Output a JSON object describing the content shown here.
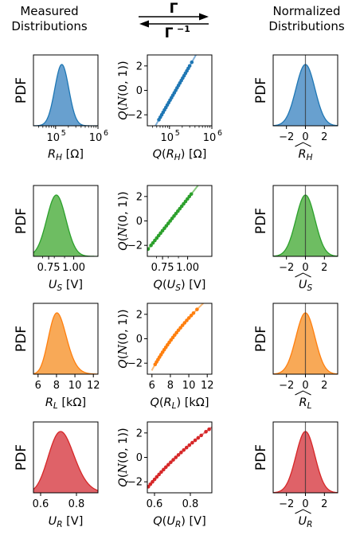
{
  "headers": {
    "left": [
      "Measured",
      "Distributions"
    ],
    "right": [
      "Normalized",
      "Distributions"
    ],
    "forward": "Γ",
    "inverse": "Γ",
    "inverse_sup": "−1"
  },
  "colors": {
    "RH": "#4d8fc7",
    "US": "#55b247",
    "RL": "#f79a3a",
    "UR": "#d9474d",
    "RH_dot": "#1f77b4",
    "US_dot": "#2ca02c",
    "RL_dot": "#ff7f0e",
    "UR_dot": "#d62728"
  },
  "chart_data": [
    {
      "type": "area",
      "row": 0,
      "col": 0,
      "ylabel": "PDF",
      "xlabel": "R_H [Ω]",
      "xlabel_main": "R",
      "xlabel_sub": "H",
      "xlabel_unit": "[Ω]",
      "xscale": "log",
      "xlim": [
        30000.0,
        1000000.0
      ],
      "xticks": [
        {
          "v": 100000.0,
          "base": "10",
          "exp": "5"
        },
        {
          "v": 1000000.0,
          "base": "10",
          "exp": "6"
        }
      ],
      "dist": {
        "kind": "lognormal",
        "mu": 11.85,
        "sigma": 0.38
      },
      "color": "RH"
    },
    {
      "type": "scatter",
      "row": 0,
      "col": 1,
      "ylabel": "Q(𝒩(0, 1))",
      "xlabel": "Q(R_H) [Ω]",
      "xlabel_pre": "Q(",
      "xlabel_main": "R",
      "xlabel_sub": "H",
      "xlabel_post": ") [Ω]",
      "xscale": "log",
      "xlim": [
        30000.0,
        1000000.0
      ],
      "ylim": [
        -2.9,
        2.9
      ],
      "yticks": [
        -2,
        0,
        2
      ],
      "xticks": [
        {
          "v": 100000.0,
          "base": "10",
          "exp": "5"
        },
        {
          "v": 1000000.0,
          "base": "10",
          "exp": "6"
        }
      ],
      "dist": {
        "kind": "lognormal",
        "mu": 11.85,
        "sigma": 0.38
      },
      "curve_ext": [
        -3.2,
        2.9
      ],
      "points_z": [
        -2.4,
        -2.2,
        -2.0,
        -1.8,
        -1.6,
        -1.4,
        -1.2,
        -1.0,
        -0.8,
        -0.6,
        -0.4,
        -0.2,
        0.0,
        0.2,
        0.4,
        0.6,
        0.8,
        1.0,
        1.2,
        1.4,
        1.6,
        1.8,
        2.0,
        2.3
      ],
      "color": "RH"
    },
    {
      "type": "area",
      "row": 0,
      "col": 2,
      "ylabel": "PDF",
      "xlabel": "R̂_H",
      "xlabel_main": "R",
      "xlabel_sub": "H",
      "hat": true,
      "xlim": [
        -3.4,
        3.4
      ],
      "xticks": [
        {
          "v": -2,
          "t": "−2"
        },
        {
          "v": 0,
          "t": "0"
        },
        {
          "v": 2,
          "t": "2"
        }
      ],
      "dist": {
        "kind": "normal",
        "mu": 0,
        "sigma": 1
      },
      "color": "RH"
    },
    {
      "type": "area",
      "row": 1,
      "col": 0,
      "ylabel": "PDF",
      "xlabel": "U_S [V]",
      "xlabel_main": "U",
      "xlabel_sub": "S",
      "xlabel_unit": "[V]",
      "xscale": "log",
      "xlim": [
        0.63,
        1.32
      ],
      "xticks": [
        {
          "v": 0.75,
          "t": "0.75"
        },
        {
          "v": 1.0,
          "t": "1.00"
        }
      ],
      "dist": {
        "kind": "lognormal",
        "mu": -0.2,
        "sigma": 0.11
      },
      "color": "US"
    },
    {
      "type": "scatter",
      "row": 1,
      "col": 1,
      "ylabel": "Q(𝒩(0, 1))",
      "xlabel": "Q(U_S) [V]",
      "xlabel_pre": "Q(",
      "xlabel_main": "U",
      "xlabel_sub": "S",
      "xlabel_post": ") [V]",
      "xscale": "log",
      "xlim": [
        0.63,
        1.32
      ],
      "ylim": [
        -2.9,
        2.9
      ],
      "yticks": [
        -2,
        0,
        2
      ],
      "xticks": [
        {
          "v": 0.75,
          "t": "0.75"
        },
        {
          "v": 1.0,
          "t": "1.00"
        }
      ],
      "dist": {
        "kind": "lognormal",
        "mu": -0.2,
        "sigma": 0.11
      },
      "curve_ext": [
        -3.2,
        3.3
      ],
      "points_z": [
        -2.3,
        -2.0,
        -1.8,
        -1.6,
        -1.4,
        -1.2,
        -1.0,
        -0.8,
        -0.6,
        -0.4,
        -0.2,
        0.0,
        0.2,
        0.4,
        0.6,
        0.8,
        1.0,
        1.2,
        1.4,
        1.6,
        1.8,
        2.0,
        2.2
      ],
      "color": "US"
    },
    {
      "type": "area",
      "row": 1,
      "col": 2,
      "ylabel": "PDF",
      "xlabel": "Û_S",
      "xlabel_main": "U",
      "xlabel_sub": "S",
      "hat": true,
      "xlim": [
        -3.4,
        3.4
      ],
      "xticks": [
        {
          "v": -2,
          "t": "−2"
        },
        {
          "v": 0,
          "t": "0"
        },
        {
          "v": 2,
          "t": "2"
        }
      ],
      "dist": {
        "kind": "normal",
        "mu": 0,
        "sigma": 1
      },
      "color": "US"
    },
    {
      "type": "area",
      "row": 2,
      "col": 0,
      "ylabel": "PDF",
      "xlabel": "R_L [kΩ]",
      "xlabel_main": "R",
      "xlabel_sub": "L",
      "xlabel_unit": "[kΩ]",
      "xlim": [
        5.5,
        12.5
      ],
      "xticks": [
        {
          "v": 6,
          "t": "6"
        },
        {
          "v": 8,
          "t": "8"
        },
        {
          "v": 10,
          "t": "10"
        },
        {
          "v": 12,
          "t": "12"
        }
      ],
      "dist": {
        "kind": "lognormal",
        "mu": 2.1,
        "sigma": 0.12
      },
      "color": "RL"
    },
    {
      "type": "scatter",
      "row": 2,
      "col": 1,
      "ylabel": "Q(𝒩(0, 1))",
      "xlabel": "Q(R_L) [kΩ]",
      "xlabel_pre": "Q(",
      "xlabel_main": "R",
      "xlabel_sub": "L",
      "xlabel_post": ") [kΩ]",
      "xlim": [
        5.5,
        12.5
      ],
      "ylim": [
        -2.9,
        2.9
      ],
      "yticks": [
        -2,
        0,
        2
      ],
      "xticks": [
        {
          "v": 6,
          "t": "6"
        },
        {
          "v": 8,
          "t": "8"
        },
        {
          "v": 10,
          "t": "10"
        },
        {
          "v": 12,
          "t": "12"
        }
      ],
      "dist": {
        "kind": "lognormal",
        "mu": 2.1,
        "sigma": 0.12
      },
      "curve_ext": [
        -2.6,
        3.6
      ],
      "points_z": [
        -2.1,
        -1.9,
        -1.7,
        -1.5,
        -1.3,
        -1.1,
        -0.9,
        -0.7,
        -0.5,
        -0.3,
        -0.1,
        0.1,
        0.3,
        0.5,
        0.7,
        0.9,
        1.1,
        1.3,
        1.5,
        1.7,
        1.9,
        2.1,
        2.4
      ],
      "color": "RL"
    },
    {
      "type": "area",
      "row": 2,
      "col": 2,
      "ylabel": "PDF",
      "xlabel": "R̂_L",
      "xlabel_main": "R",
      "xlabel_sub": "L",
      "hat": true,
      "xlim": [
        -3.4,
        3.4
      ],
      "xticks": [
        {
          "v": -2,
          "t": "−2"
        },
        {
          "v": 0,
          "t": "0"
        },
        {
          "v": 2,
          "t": "2"
        }
      ],
      "dist": {
        "kind": "normal",
        "mu": 0,
        "sigma": 1
      },
      "color": "RL"
    },
    {
      "type": "area",
      "row": 3,
      "col": 0,
      "ylabel": "PDF",
      "xlabel": "U_R [V]",
      "xlabel_main": "U",
      "xlabel_sub": "R",
      "xlabel_unit": "[V]",
      "xlim": [
        0.56,
        0.92
      ],
      "xticks": [
        {
          "v": 0.6,
          "t": "0.6"
        },
        {
          "v": 0.8,
          "t": "0.8"
        }
      ],
      "dist": {
        "kind": "lognormal",
        "mu": -0.33,
        "sigma": 0.1
      },
      "color": "UR"
    },
    {
      "type": "scatter",
      "row": 3,
      "col": 1,
      "ylabel": "Q(𝒩(0, 1))",
      "xlabel": "Q(U_R) [V]",
      "xlabel_pre": "Q(",
      "xlabel_main": "U",
      "xlabel_sub": "R",
      "xlabel_post": ") [V]",
      "xlim": [
        0.56,
        0.92
      ],
      "ylim": [
        -2.9,
        2.9
      ],
      "yticks": [
        -2,
        0,
        2
      ],
      "xticks": [
        {
          "v": 0.6,
          "t": "0.6"
        },
        {
          "v": 0.8,
          "t": "0.8"
        }
      ],
      "dist": {
        "kind": "lognormal",
        "mu": -0.33,
        "sigma": 0.1
      },
      "curve_ext": [
        -3.2,
        3.0
      ],
      "points_z": [
        -2.4,
        -2.2,
        -2.0,
        -1.8,
        -1.6,
        -1.4,
        -1.2,
        -1.0,
        -0.8,
        -0.6,
        -0.4,
        -0.2,
        0.0,
        0.2,
        0.4,
        0.6,
        0.8,
        1.0,
        1.2,
        1.4,
        1.6,
        1.8,
        2.1,
        2.3
      ],
      "color": "UR"
    },
    {
      "type": "area",
      "row": 3,
      "col": 2,
      "ylabel": "PDF",
      "xlabel": "Û_R",
      "xlabel_main": "U",
      "xlabel_sub": "R",
      "hat": true,
      "xlim": [
        -3.4,
        3.4
      ],
      "xticks": [
        {
          "v": -2,
          "t": "−2"
        },
        {
          "v": 0,
          "t": "0"
        },
        {
          "v": 2,
          "t": "2"
        }
      ],
      "dist": {
        "kind": "normal",
        "mu": 0,
        "sigma": 1
      },
      "color": "UR"
    }
  ]
}
